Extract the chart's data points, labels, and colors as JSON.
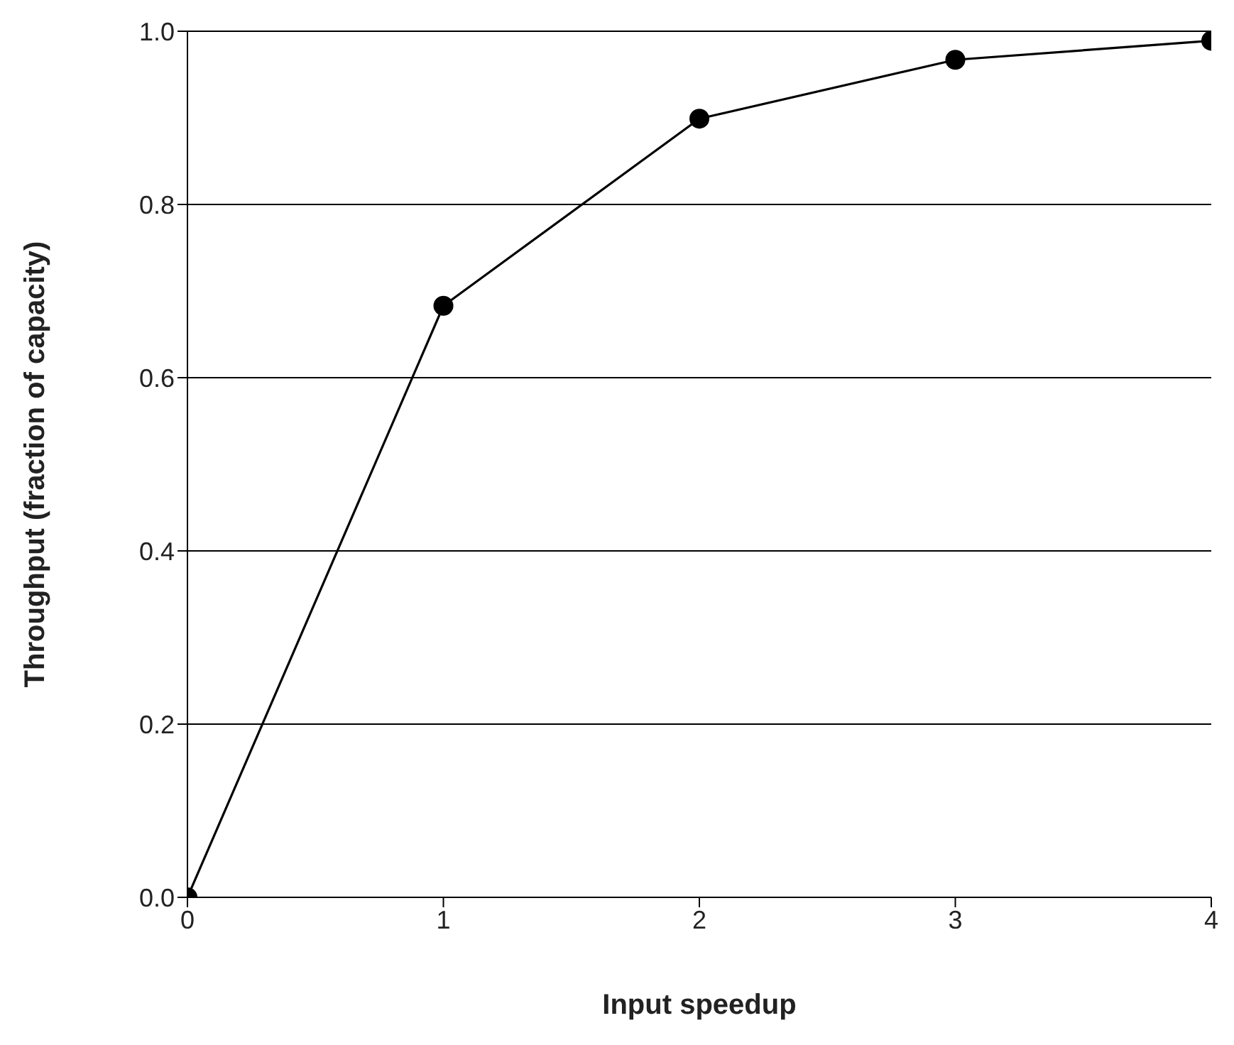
{
  "chart_data": {
    "type": "line",
    "xlabel": "Input speedup",
    "ylabel": "Throughput (fraction of capacity)",
    "x": [
      0,
      1,
      2,
      3,
      4
    ],
    "series": [
      {
        "color": "#000000",
        "values": [
          0,
          0.683,
          0.899,
          0.967,
          0.989
        ]
      }
    ],
    "xlim": [
      0,
      4
    ],
    "xticks": [
      0,
      1,
      2,
      3,
      4
    ],
    "ylim": [
      0,
      1
    ],
    "yticks": [
      {
        "value": 0,
        "label": "0.0"
      },
      {
        "value": 0.2,
        "label": "0.2"
      },
      {
        "value": 0.4,
        "label": "0.4"
      },
      {
        "value": 0.6,
        "label": "0.6"
      },
      {
        "value": 0.8,
        "label": "0.8"
      },
      {
        "value": 1,
        "label": "1.0"
      }
    ],
    "grid": "y",
    "marker": "circle",
    "line_style": "solid"
  }
}
